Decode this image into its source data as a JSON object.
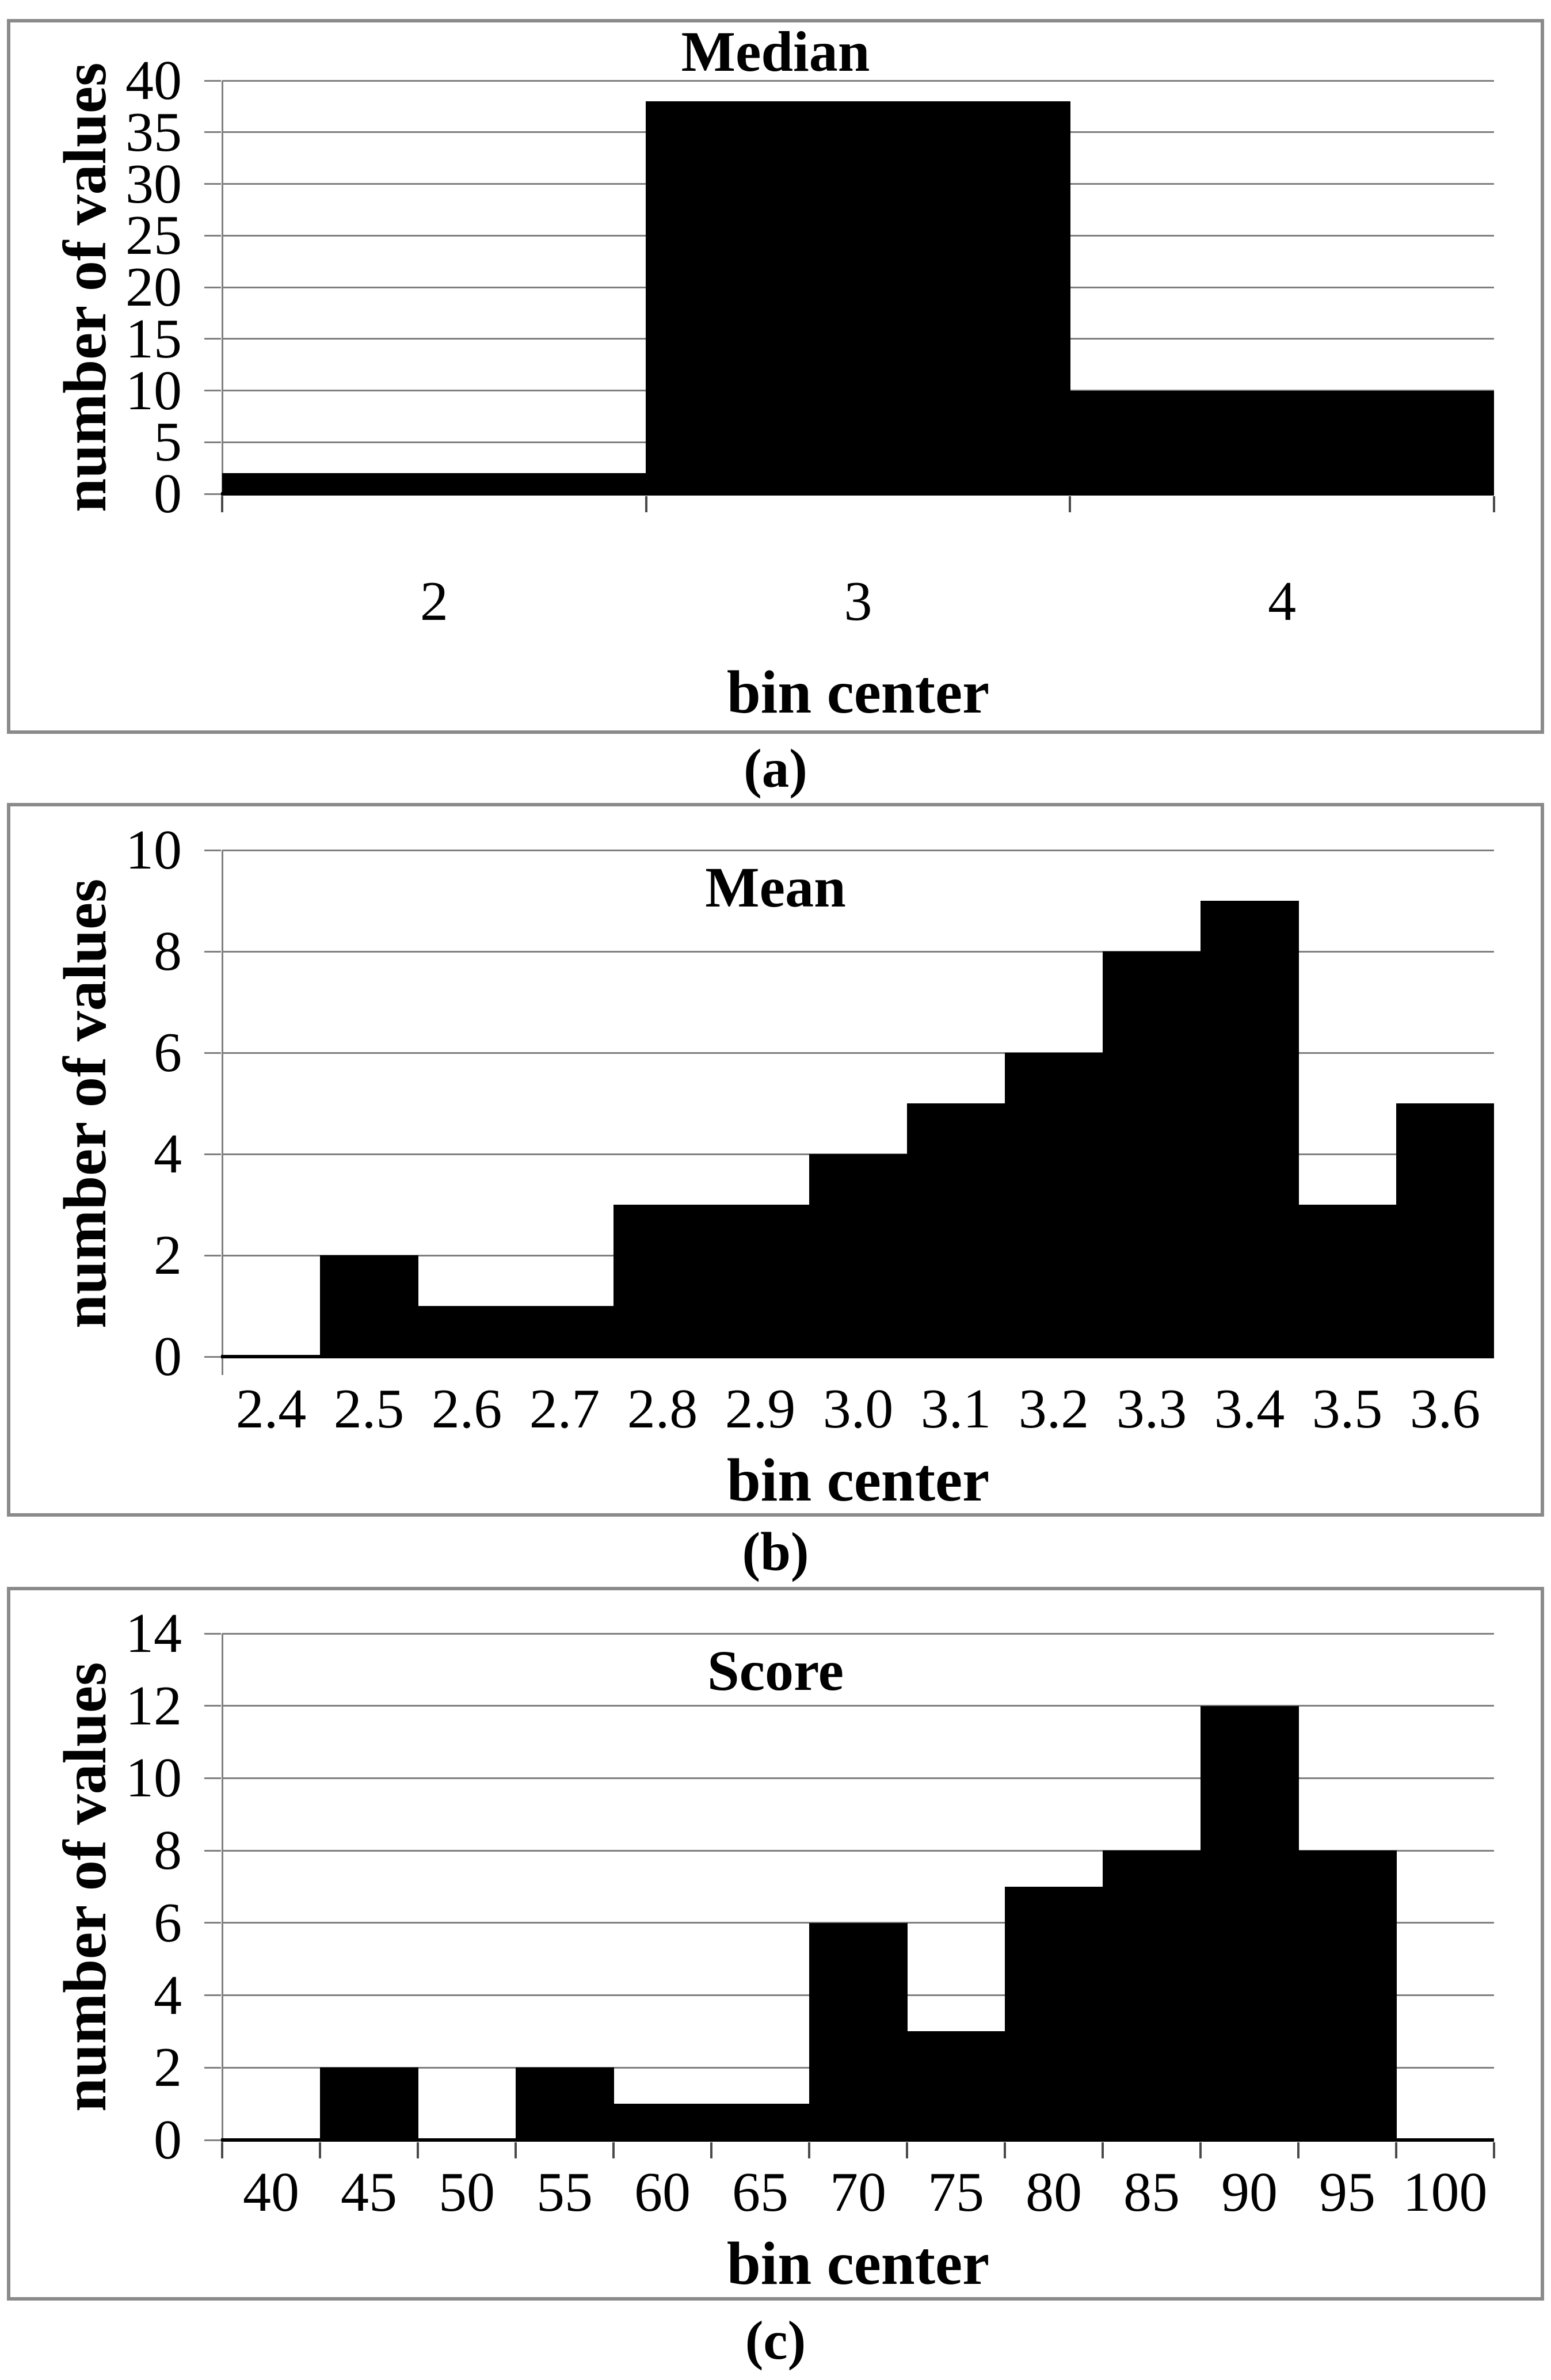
{
  "colors": {
    "bar": "#000000",
    "gridline": "#7f7f7f",
    "box_border": "#8a8a8a",
    "x_axis_line": "#000000",
    "y_axis_line": "#7f7f7f",
    "text": "#000000",
    "background": "#ffffff"
  },
  "panels": [
    {
      "label": "(a)",
      "chart_data": {
        "type": "bar",
        "title": "Median",
        "xlabel": "bin center",
        "ylabel": "number of values",
        "categories": [
          "2",
          "3",
          "4"
        ],
        "values": [
          2,
          38,
          10
        ],
        "ylim": [
          0,
          40
        ],
        "ytick_step": 5,
        "bin_width": 1,
        "bar_gap": 0,
        "grid": true,
        "xtick_marks": true,
        "title_position": "above-plot",
        "legend": "none"
      }
    },
    {
      "label": "(b)",
      "chart_data": {
        "type": "bar",
        "title": "Mean",
        "xlabel": "bin center",
        "ylabel": "number of values",
        "categories": [
          "2.4",
          "2.5",
          "2.6",
          "2.7",
          "2.8",
          "2.9",
          "3.0",
          "3.1",
          "3.2",
          "3.3",
          "3.4",
          "3.5",
          "3.6"
        ],
        "values": [
          0,
          2,
          1,
          1,
          3,
          3,
          4,
          5,
          6,
          8,
          9,
          3,
          5
        ],
        "ylim": [
          0,
          10
        ],
        "ytick_step": 2,
        "bin_width": 0.1,
        "bar_gap": 0,
        "grid": true,
        "xtick_marks": false,
        "title_position": "inside-top",
        "legend": "none"
      }
    },
    {
      "label": "(c)",
      "chart_data": {
        "type": "bar",
        "title": "Score",
        "xlabel": "bin center",
        "ylabel": "number of values",
        "categories": [
          "40",
          "45",
          "50",
          "55",
          "60",
          "65",
          "70",
          "75",
          "80",
          "85",
          "90",
          "95",
          "100"
        ],
        "values": [
          0,
          2,
          0,
          2,
          1,
          1,
          6,
          3,
          7,
          8,
          12,
          8,
          0
        ],
        "ylim": [
          0,
          14
        ],
        "ytick_step": 2,
        "bin_width": 5,
        "bar_gap": 0,
        "grid": true,
        "xtick_marks": true,
        "title_position": "inside-top",
        "legend": "none"
      }
    }
  ]
}
